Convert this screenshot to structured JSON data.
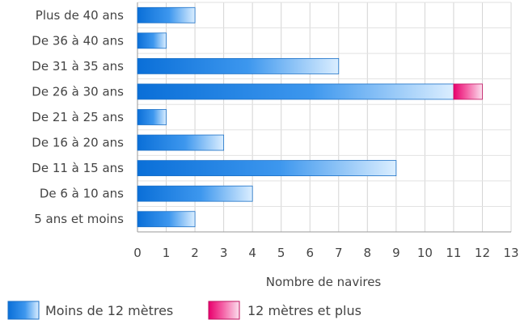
{
  "chart_data": {
    "type": "bar",
    "orientation": "horizontal",
    "stacked": true,
    "categories": [
      "Plus de 40 ans",
      "De 36 à 40 ans",
      "De 31 à 35 ans",
      "De 26 à 30 ans",
      "De 21 à 25 ans",
      "De 16 à 20 ans",
      "De 11 à 15 ans",
      "De 6 à 10 ans",
      "5 ans et moins"
    ],
    "series": [
      {
        "name": "Moins de 12 mètres",
        "values": [
          2,
          1,
          7,
          11,
          1,
          3,
          9,
          4,
          2
        ],
        "color": "#1a7fe0"
      },
      {
        "name": "12 mètres et plus",
        "values": [
          0,
          0,
          0,
          1,
          0,
          0,
          0,
          0,
          0
        ],
        "color": "#ee1f7a"
      }
    ],
    "xlabel": "Nombre de navires",
    "ylabel": "",
    "xlim": [
      0,
      13
    ],
    "xticks": [
      "0",
      "1",
      "2",
      "3",
      "4",
      "5",
      "6",
      "7",
      "8",
      "9",
      "10",
      "11",
      "12",
      "13"
    ],
    "grid": true,
    "legend_position": "bottom"
  }
}
